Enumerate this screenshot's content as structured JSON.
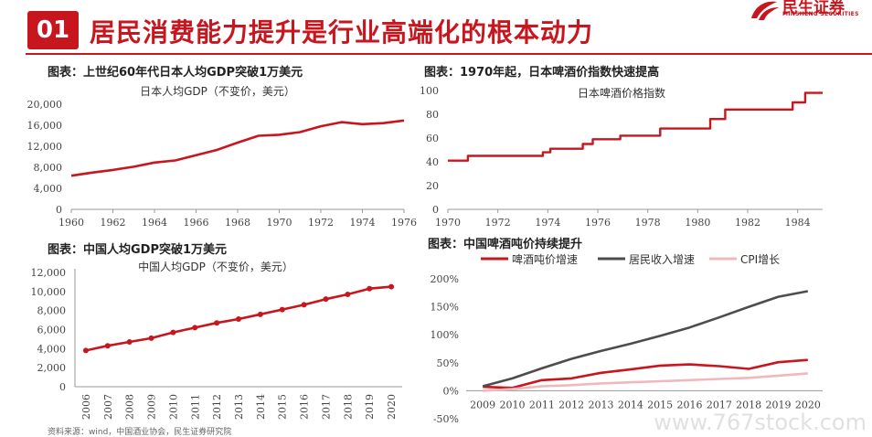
{
  "header": {
    "badge": "01",
    "title": "居民消费能力提升是行业高端化的根本动力"
  },
  "logo": {
    "cn": "民生证券",
    "en": "MINSHENG SECURITIES"
  },
  "footer": {
    "source": "资料来源：wind，中国酒业协会，民生证券研究院"
  },
  "watermark": "www.767stock.com",
  "colors": {
    "accent": "#c8161e",
    "dark": "#4d4d4d",
    "pink": "#f0b8bc"
  },
  "chart_data": [
    {
      "type": "line",
      "panel_label": "图表：上世纪60年代日本人均GDP突破1万美元",
      "title": "日本人均GDP（不变价，美元）",
      "x": [
        1960,
        1961,
        1962,
        1963,
        1964,
        1965,
        1966,
        1967,
        1968,
        1969,
        1970,
        1971,
        1972,
        1973,
        1974,
        1975,
        1976
      ],
      "series": [
        {
          "name": "",
          "values": [
            6400,
            7000,
            7500,
            8100,
            8900,
            9300,
            10300,
            11300,
            12700,
            14000,
            14200,
            14700,
            15800,
            16600,
            16200,
            16400,
            16900
          ]
        }
      ],
      "xticks": [
        "1960",
        "1962",
        "1964",
        "1966",
        "1968",
        "1970",
        "1972",
        "1974",
        "1976"
      ],
      "yticks": [
        "0",
        "4,000",
        "8,000",
        "12,000",
        "16,000",
        "20,000"
      ],
      "ylim": [
        0,
        20000
      ]
    },
    {
      "type": "line",
      "panel_label": "图表：1970年起，日本啤酒价指数快速提高",
      "title": "日本啤酒价格指数",
      "x": [
        1970.0,
        1970.8,
        1970.8,
        1973.8,
        1973.8,
        1974.1,
        1974.1,
        1975.4,
        1975.4,
        1975.8,
        1975.8,
        1976.9,
        1976.9,
        1978.5,
        1978.5,
        1980.5,
        1980.5,
        1981.1,
        1981.1,
        1983.8,
        1983.8,
        1984.3,
        1984.3,
        1985.0
      ],
      "series": [
        {
          "name": "",
          "values": [
            41,
            41,
            45,
            45,
            48,
            48,
            51,
            51,
            55,
            55,
            59,
            59,
            62,
            62,
            68,
            68,
            76,
            76,
            84,
            84,
            90,
            90,
            98,
            98
          ]
        }
      ],
      "xticks": [
        "1970",
        "1972",
        "1974",
        "1976",
        "1978",
        "1980",
        "1982",
        "1984"
      ],
      "yticks": [
        "0",
        "20",
        "40",
        "60",
        "80",
        "100"
      ],
      "ylim": [
        0,
        100
      ]
    },
    {
      "type": "line",
      "panel_label": "图表：中国人均GDP突破1万美元",
      "title": "中国人均GDP（不变价，美元）",
      "x": [
        "2006",
        "2007",
        "2008",
        "2009",
        "2010",
        "2011",
        "2012",
        "2013",
        "2014",
        "2015",
        "2016",
        "2017",
        "2018",
        "2019",
        "2020"
      ],
      "series": [
        {
          "name": "",
          "values": [
            3800,
            4300,
            4700,
            5100,
            5700,
            6200,
            6700,
            7100,
            7600,
            8100,
            8600,
            9200,
            9700,
            10300,
            10500
          ]
        }
      ],
      "xticks": [
        "2006",
        "2007",
        "2008",
        "2009",
        "2010",
        "2011",
        "2012",
        "2013",
        "2014",
        "2015",
        "2016",
        "2017",
        "2018",
        "2019",
        "2020"
      ],
      "yticks": [
        "0",
        "2,000",
        "4,000",
        "6,000",
        "8,000",
        "10,000",
        "12,000"
      ],
      "ylim": [
        0,
        12000
      ]
    },
    {
      "type": "line",
      "panel_label": "图表：中国啤酒吨价持续提升",
      "x": [
        "2009",
        "2010",
        "2011",
        "2012",
        "2013",
        "2014",
        "2015",
        "2016",
        "2017",
        "2018",
        "2019",
        "2020"
      ],
      "series": [
        {
          "name": "啤酒吨价增速",
          "values": [
            7,
            5,
            19,
            22,
            32,
            38,
            45,
            47,
            44,
            39,
            51,
            55
          ]
        },
        {
          "name": "居民收入增速",
          "values": [
            8,
            22,
            40,
            57,
            71,
            84,
            98,
            113,
            131,
            150,
            168,
            178
          ]
        },
        {
          "name": "CPI增长",
          "values": [
            0,
            3,
            8,
            10,
            13,
            15,
            17,
            19,
            21,
            23,
            27,
            31
          ]
        }
      ],
      "xticks": [
        "2009",
        "2010",
        "2011",
        "2012",
        "2013",
        "2014",
        "2015",
        "2016",
        "2017",
        "2018",
        "2019",
        "2020"
      ],
      "yticks": [
        "-50%",
        "0%",
        "50%",
        "100%",
        "150%",
        "200%"
      ],
      "ylim": [
        -50,
        200
      ],
      "legend": "top"
    }
  ]
}
